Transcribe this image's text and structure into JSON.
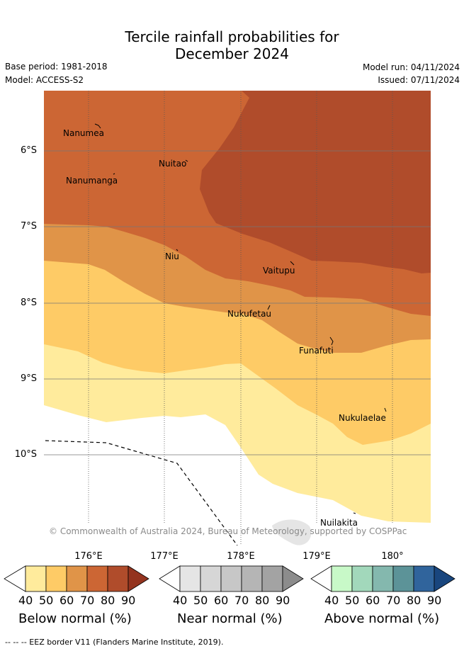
{
  "title": {
    "line1": "Tercile rainfall probabilities for",
    "line2": "December 2024"
  },
  "meta": {
    "base_period": "Base period: 1981-2018",
    "model": "Model: ACCESS-S2",
    "model_run": "Model run: 04/11/2024",
    "issued": "Issued: 07/11/2024"
  },
  "axes": {
    "lat_labels": [
      "6°S",
      "7°S",
      "8°S",
      "9°S",
      "10°S"
    ],
    "lon_labels": [
      "176°E",
      "177°E",
      "178°E",
      "179°E",
      "180°"
    ]
  },
  "places": [
    "Nanumea",
    "Nuitao",
    "Nanumanga",
    "Niu",
    "Vaitupu",
    "Nukufetau",
    "Funafuti",
    "Nukulaelae",
    "Nuilakita"
  ],
  "copyright": "© Commonwealth of Australia 2024, Bureau of Meteorology, supported by COSPPac",
  "colorbars": [
    {
      "title": "Below normal (%)",
      "ticks": [
        "40",
        "50",
        "60",
        "70",
        "80",
        "90"
      ],
      "colors": [
        "#ffeb9c",
        "#fecb66",
        "#e09448",
        "#cc6634",
        "#b04c2b",
        "#94341f"
      ]
    },
    {
      "title": "Near normal (%)",
      "ticks": [
        "40",
        "50",
        "60",
        "70",
        "80",
        "90"
      ],
      "colors": [
        "#e5e5e5",
        "#d6d6d6",
        "#c7c7c7",
        "#b5b5b5",
        "#a3a3a3",
        "#8c8c8c"
      ]
    },
    {
      "title": "Above normal (%)",
      "ticks": [
        "40",
        "50",
        "60",
        "70",
        "80",
        "90"
      ],
      "colors": [
        "#c8f9c8",
        "#a2d8bb",
        "#84b8ae",
        "#5c9398",
        "#30649c",
        "#19467e"
      ]
    }
  ],
  "footer": {
    "legend": "-- -- -- EEZ border V11 (Flanders Marine Institute, 2019)."
  }
}
